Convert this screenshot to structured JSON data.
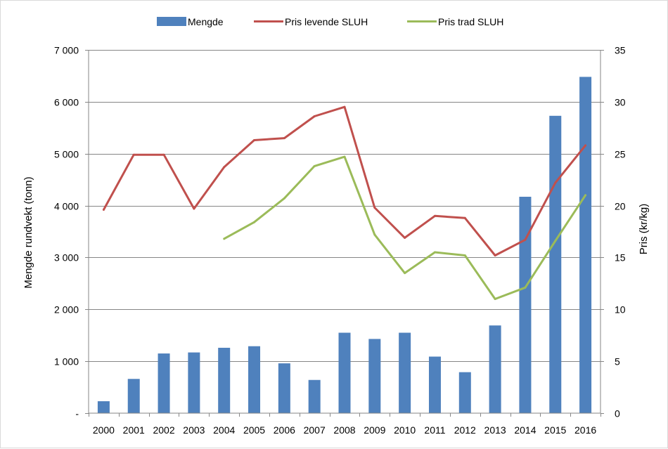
{
  "chart_data": {
    "type": "bar+line",
    "title": "",
    "categories": [
      "2000",
      "2001",
      "2002",
      "2003",
      "2004",
      "2005",
      "2006",
      "2007",
      "2008",
      "2009",
      "2010",
      "2011",
      "2012",
      "2013",
      "2014",
      "2015",
      "2016"
    ],
    "y_left": {
      "label": "Mengde rundvekt (tonn)",
      "range": [
        0,
        7000
      ],
      "ticks": [
        0,
        1000,
        2000,
        3000,
        4000,
        5000,
        6000,
        7000
      ],
      "tick_labels": [
        "-",
        "1 000",
        "2 000",
        "3 000",
        "4 000",
        "5 000",
        "6 000",
        "7 000"
      ]
    },
    "y_right": {
      "label": "Pris (kr/kg)",
      "range": [
        0,
        35
      ],
      "ticks": [
        0,
        5,
        10,
        15,
        20,
        25,
        30,
        35
      ],
      "tick_labels": [
        "0",
        "5",
        "10",
        "15",
        "20",
        "25",
        "30",
        "35"
      ]
    },
    "series": [
      {
        "name": "Mengde",
        "type": "bar",
        "axis": "left",
        "color": "#4f81bd",
        "values": [
          230,
          660,
          1150,
          1170,
          1260,
          1290,
          960,
          640,
          1550,
          1430,
          1550,
          1090,
          790,
          1690,
          4170,
          5730,
          6480
        ]
      },
      {
        "name": "Pris levende SLUH",
        "type": "line",
        "axis": "right",
        "color": "#c0504d",
        "values": [
          19.6,
          24.9,
          24.9,
          19.7,
          23.7,
          26.3,
          26.5,
          28.6,
          29.5,
          19.8,
          16.9,
          19.0,
          18.8,
          15.2,
          16.7,
          22.2,
          25.8
        ]
      },
      {
        "name": "Pris trad SLUH",
        "type": "line",
        "axis": "right",
        "color": "#9bbb59",
        "values": [
          null,
          null,
          null,
          null,
          16.8,
          18.4,
          20.7,
          23.8,
          24.7,
          17.2,
          13.5,
          15.5,
          15.2,
          11.0,
          12.1,
          16.6,
          21.0
        ]
      }
    ],
    "legend_position": "top-center",
    "grid": true
  }
}
